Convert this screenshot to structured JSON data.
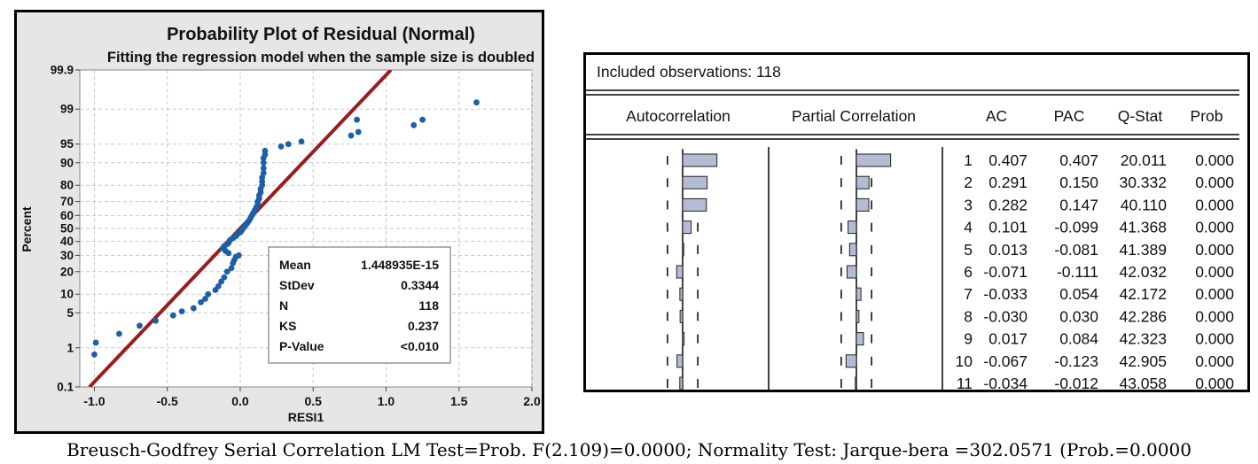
{
  "probability_plot": {
    "title": "Probability Plot of Residual (Normal)",
    "subtitle": "Fitting the regression model when the sample size is doubled",
    "xlabel": "RESI1",
    "ylabel": "Percent",
    "x_ticks": [
      "-1.0",
      "-0.5",
      "0.0",
      "0.5",
      "1.0",
      "1.5",
      "2.0"
    ],
    "y_ticks": [
      "0.1",
      "1",
      "5",
      "10",
      "20",
      "30",
      "40",
      "50",
      "60",
      "70",
      "80",
      "90",
      "95",
      "99",
      "99.9"
    ],
    "stats": [
      {
        "label": "Mean",
        "value": "1.448935E-15"
      },
      {
        "label": "StDev",
        "value": "0.3344"
      },
      {
        "label": "N",
        "value": "118"
      },
      {
        "label": "KS",
        "value": "0.237"
      },
      {
        "label": "P-Value",
        "value": "<0.010"
      }
    ],
    "colors": {
      "points": "#1a5fa8",
      "fit_line": "#9b1c1c",
      "background": "#e6e6e6"
    }
  },
  "correlogram": {
    "header": "Included observations: 118",
    "columns": [
      "Autocorrelation",
      "Partial Correlation",
      "AC",
      "PAC",
      "Q-Stat",
      "Prob"
    ],
    "rows": [
      {
        "lag": "1",
        "ac": "0.407",
        "pac": "0.407",
        "q": "20.011",
        "prob": "0.000"
      },
      {
        "lag": "2",
        "ac": "0.291",
        "pac": "0.150",
        "q": "30.332",
        "prob": "0.000"
      },
      {
        "lag": "3",
        "ac": "0.282",
        "pac": "0.147",
        "q": "40.110",
        "prob": "0.000"
      },
      {
        "lag": "4",
        "ac": "0.101",
        "pac": "-0.099",
        "q": "41.368",
        "prob": "0.000"
      },
      {
        "lag": "5",
        "ac": "0.013",
        "pac": "-0.081",
        "q": "41.389",
        "prob": "0.000"
      },
      {
        "lag": "6",
        "ac": "-0.071",
        "pac": "-0.111",
        "q": "42.032",
        "prob": "0.000"
      },
      {
        "lag": "7",
        "ac": "-0.033",
        "pac": "0.054",
        "q": "42.172",
        "prob": "0.000"
      },
      {
        "lag": "8",
        "ac": "-0.030",
        "pac": "0.030",
        "q": "42.286",
        "prob": "0.000"
      },
      {
        "lag": "9",
        "ac": "0.017",
        "pac": "0.084",
        "q": "42.323",
        "prob": "0.000"
      },
      {
        "lag": "10",
        "ac": "-0.067",
        "pac": "-0.123",
        "q": "42.905",
        "prob": "0.000"
      },
      {
        "lag": "11",
        "ac": "-0.034",
        "pac": "-0.012",
        "q": "43.058",
        "prob": "0.000"
      }
    ],
    "colors": {
      "bar": "#b4bcd4"
    }
  },
  "footer": "Breusch-Godfrey Serial Correlation LM Test=Prob. F(2.109)=0.0000; Normality Test: Jarque-bera =302.0571 (Prob.=0.0000",
  "chart_data": [
    {
      "type": "scatter",
      "title": "Probability Plot of Residual (Normal)",
      "subtitle": "Fitting the regression model when the sample size is doubled",
      "xlabel": "RESI1",
      "ylabel": "Percent",
      "xlim": [
        -1.1,
        2.0
      ],
      "ylim": [
        0.1,
        99.9
      ],
      "y_scale": "normal-probability",
      "grid": true,
      "fit_line": {
        "mean": 0.0,
        "stdev": 0.3344
      },
      "points": [
        {
          "x": -1.0,
          "y": 0.7
        },
        {
          "x": -0.99,
          "y": 1.3
        },
        {
          "x": -0.83,
          "y": 2.0
        },
        {
          "x": -0.69,
          "y": 2.9
        },
        {
          "x": -0.58,
          "y": 3.6
        },
        {
          "x": -0.46,
          "y": 4.5
        },
        {
          "x": -0.4,
          "y": 5.3
        },
        {
          "x": -0.32,
          "y": 6.0
        },
        {
          "x": -0.27,
          "y": 7.5
        },
        {
          "x": -0.24,
          "y": 8.5
        },
        {
          "x": -0.22,
          "y": 10.0
        },
        {
          "x": -0.17,
          "y": 11.5
        },
        {
          "x": -0.15,
          "y": 13.0
        },
        {
          "x": -0.13,
          "y": 15.0
        },
        {
          "x": -0.11,
          "y": 17.0
        },
        {
          "x": -0.09,
          "y": 20.0
        },
        {
          "x": -0.06,
          "y": 22.0
        },
        {
          "x": -0.05,
          "y": 25.0
        },
        {
          "x": -0.04,
          "y": 27.0
        },
        {
          "x": -0.03,
          "y": 29.0
        },
        {
          "x": -0.01,
          "y": 30.0
        },
        {
          "x": -0.08,
          "y": 31.5
        },
        {
          "x": -0.1,
          "y": 33.0
        },
        {
          "x": -0.12,
          "y": 35.0
        },
        {
          "x": -0.11,
          "y": 36.5
        },
        {
          "x": -0.09,
          "y": 38.0
        },
        {
          "x": -0.08,
          "y": 39.0
        },
        {
          "x": -0.07,
          "y": 41.0
        },
        {
          "x": -0.05,
          "y": 42.5
        },
        {
          "x": -0.03,
          "y": 44.0
        },
        {
          "x": -0.02,
          "y": 45.5
        },
        {
          "x": 0.0,
          "y": 47.0
        },
        {
          "x": 0.01,
          "y": 48.5
        },
        {
          "x": 0.02,
          "y": 50.0
        },
        {
          "x": 0.03,
          "y": 51.5
        },
        {
          "x": 0.04,
          "y": 53.0
        },
        {
          "x": 0.05,
          "y": 54.5
        },
        {
          "x": 0.06,
          "y": 56.0
        },
        {
          "x": 0.07,
          "y": 58.0
        },
        {
          "x": 0.08,
          "y": 60.0
        },
        {
          "x": 0.09,
          "y": 62.0
        },
        {
          "x": 0.1,
          "y": 64.0
        },
        {
          "x": 0.11,
          "y": 66.0
        },
        {
          "x": 0.12,
          "y": 68.0
        },
        {
          "x": 0.12,
          "y": 70.0
        },
        {
          "x": 0.13,
          "y": 72.0
        },
        {
          "x": 0.13,
          "y": 74.0
        },
        {
          "x": 0.14,
          "y": 76.0
        },
        {
          "x": 0.14,
          "y": 78.0
        },
        {
          "x": 0.15,
          "y": 80.0
        },
        {
          "x": 0.15,
          "y": 82.0
        },
        {
          "x": 0.15,
          "y": 84.0
        },
        {
          "x": 0.16,
          "y": 86.0
        },
        {
          "x": 0.16,
          "y": 88.0
        },
        {
          "x": 0.16,
          "y": 90.0
        },
        {
          "x": 0.16,
          "y": 91.5
        },
        {
          "x": 0.17,
          "y": 92.5
        },
        {
          "x": 0.17,
          "y": 93.5
        },
        {
          "x": 0.28,
          "y": 94.5
        },
        {
          "x": 0.33,
          "y": 95.0
        },
        {
          "x": 0.42,
          "y": 95.5
        },
        {
          "x": 0.76,
          "y": 96.5
        },
        {
          "x": 0.81,
          "y": 97.0
        },
        {
          "x": 0.8,
          "y": 98.3
        },
        {
          "x": 1.19,
          "y": 97.8
        },
        {
          "x": 1.25,
          "y": 98.3
        },
        {
          "x": 1.62,
          "y": 99.3
        }
      ]
    },
    {
      "type": "bar",
      "title": "Autocorrelation",
      "categories": [
        "1",
        "2",
        "3",
        "4",
        "5",
        "6",
        "7",
        "8",
        "9",
        "10",
        "11"
      ],
      "values": [
        0.407,
        0.291,
        0.282,
        0.101,
        0.013,
        -0.071,
        -0.033,
        -0.03,
        0.017,
        -0.067,
        -0.034
      ]
    },
    {
      "type": "bar",
      "title": "Partial Correlation",
      "categories": [
        "1",
        "2",
        "3",
        "4",
        "5",
        "6",
        "7",
        "8",
        "9",
        "10",
        "11"
      ],
      "values": [
        0.407,
        0.15,
        0.147,
        -0.099,
        -0.081,
        -0.111,
        0.054,
        0.03,
        0.084,
        -0.123,
        -0.012
      ]
    }
  ]
}
